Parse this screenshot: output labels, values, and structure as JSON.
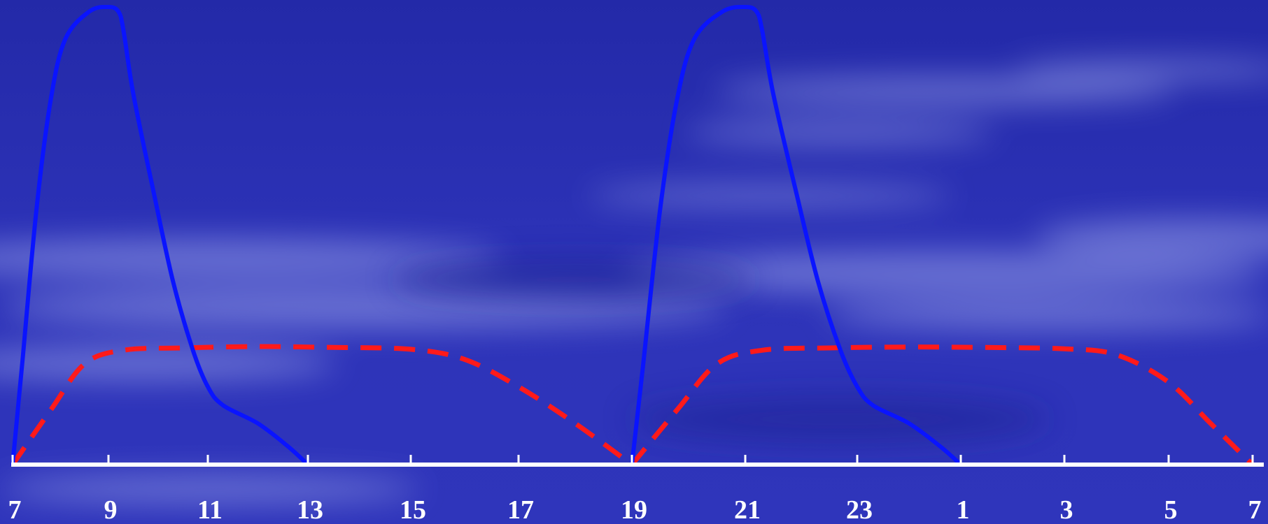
{
  "chart_data": {
    "type": "line",
    "title": "",
    "xlabel": "",
    "ylabel": "",
    "x_tick_labels": [
      "7",
      "9",
      "11",
      "13",
      "15",
      "17",
      "19",
      "21",
      "23",
      "1",
      "3",
      "5",
      "7"
    ],
    "x_range": [
      7,
      31
    ],
    "y_range": [
      0,
      100
    ],
    "grid": false,
    "legend": "none",
    "series": [
      {
        "style": "solid",
        "color": "#0a14ff",
        "points": [
          [
            7.0,
            0
          ],
          [
            7.2,
            22
          ],
          [
            7.5,
            56
          ],
          [
            7.8,
            80
          ],
          [
            8.1,
            93
          ],
          [
            8.6,
            99
          ],
          [
            9.0,
            100
          ],
          [
            9.2,
            99
          ],
          [
            9.3,
            95
          ],
          [
            9.5,
            81
          ],
          [
            9.9,
            60
          ],
          [
            10.3,
            40
          ],
          [
            10.7,
            25
          ],
          [
            11.0,
            17
          ],
          [
            11.3,
            13
          ],
          [
            12.0,
            9
          ],
          [
            12.6,
            4
          ],
          [
            13.0,
            0
          ]
        ]
      },
      {
        "style": "solid",
        "color": "#0a14ff",
        "points": [
          [
            19.0,
            0
          ],
          [
            19.2,
            22
          ],
          [
            19.5,
            56
          ],
          [
            19.8,
            80
          ],
          [
            20.1,
            93
          ],
          [
            20.6,
            99
          ],
          [
            21.0,
            100
          ],
          [
            21.2,
            99
          ],
          [
            21.3,
            95
          ],
          [
            21.5,
            81
          ],
          [
            21.9,
            60
          ],
          [
            22.3,
            40
          ],
          [
            22.7,
            25
          ],
          [
            23.0,
            17
          ],
          [
            23.3,
            13
          ],
          [
            24.0,
            9
          ],
          [
            24.6,
            4
          ],
          [
            25.0,
            0
          ]
        ]
      },
      {
        "style": "dashed",
        "color": "#ff1a1a",
        "points": [
          [
            7.0,
            0
          ],
          [
            7.8,
            12
          ],
          [
            8.5,
            22
          ],
          [
            9.3,
            25
          ],
          [
            10.5,
            25.5
          ],
          [
            12.0,
            25.8
          ],
          [
            13.5,
            25.6
          ],
          [
            15.0,
            25.2
          ],
          [
            16.0,
            23
          ],
          [
            17.0,
            17
          ],
          [
            18.0,
            9
          ],
          [
            19.0,
            0
          ]
        ]
      },
      {
        "style": "dashed",
        "color": "#ff1a1a",
        "points": [
          [
            19.0,
            0
          ],
          [
            19.8,
            12
          ],
          [
            20.5,
            22
          ],
          [
            21.3,
            25
          ],
          [
            22.5,
            25.5
          ],
          [
            24.0,
            25.7
          ],
          [
            25.5,
            25.6
          ],
          [
            27.0,
            25.3
          ],
          [
            28.0,
            24
          ],
          [
            29.0,
            18
          ],
          [
            30.0,
            9
          ],
          [
            31.0,
            0
          ]
        ]
      }
    ]
  },
  "colors": {
    "background": "#2a2fb3",
    "axis": "#ffffff",
    "curve_solid": "#0a14ff",
    "curve_dashed": "#ff1a1a"
  }
}
